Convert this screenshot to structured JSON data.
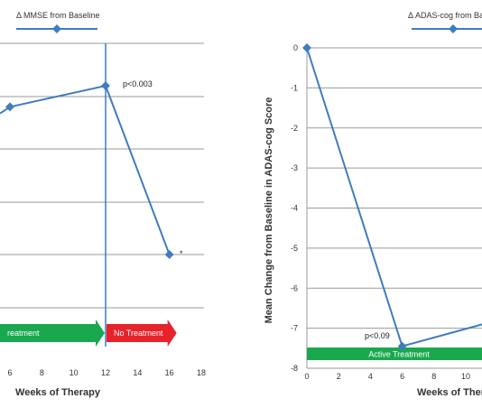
{
  "chart_data": [
    {
      "type": "line",
      "legend": "Δ MMSE from Baseline",
      "legend_placement": "top",
      "xlabel": "Weeks of Therapy",
      "ylabel": "",
      "xlim": [
        0,
        18
      ],
      "x_ticks": [
        "6",
        "8",
        "10",
        "12",
        "14",
        "16",
        "18"
      ],
      "grid": true,
      "series": [
        {
          "name": "Δ MMSE from Baseline",
          "x": [
            0,
            6,
            12,
            16
          ],
          "y": [
            3.2,
            4.1,
            4.4,
            2.0
          ]
        }
      ],
      "reference_line_x": 12,
      "annotations": [
        {
          "text": "p<0.003",
          "x": 12,
          "y": 4.4
        },
        {
          "text": "*",
          "x": 16,
          "y": 2.0
        }
      ],
      "phases": [
        {
          "label": "Active Treatment",
          "visible_label": "reatment",
          "x_start": 0,
          "x_end": 12,
          "color": "#1aa84f"
        },
        {
          "label": "No Treatment",
          "x_start": 12,
          "x_end": 16,
          "color": "#e8222a"
        }
      ]
    },
    {
      "type": "line",
      "legend": "Δ ADAS-cog from Bas",
      "legend_placement": "top-right",
      "xlabel": "Weeks of Ther",
      "ylabel": "Mean Change from Baseline in ADAS-cog Score",
      "xlim": [
        0,
        12
      ],
      "ylim": [
        -8,
        0
      ],
      "x_ticks": [
        "0",
        "2",
        "4",
        "6",
        "8",
        "10"
      ],
      "y_ticks": [
        "0",
        "-1",
        "-2",
        "-3",
        "-4",
        "-5",
        "-6",
        "-7",
        "-8"
      ],
      "grid": true,
      "series": [
        {
          "name": "Δ ADAS-cog from Baseline",
          "x": [
            0,
            6,
            12
          ],
          "y": [
            0,
            -7.45,
            -6.8
          ]
        }
      ],
      "annotations": [
        {
          "text": "p<0.09",
          "x": 6,
          "y": -7.45
        }
      ],
      "phases": [
        {
          "label": "Active Treatment",
          "x_start": 0,
          "x_end": 12,
          "color": "#1aa84f"
        }
      ]
    }
  ],
  "colors": {
    "line": "#3f7cc0",
    "grid": "#9a9a9a",
    "active": "#1aa84f",
    "none": "#e8222a"
  }
}
